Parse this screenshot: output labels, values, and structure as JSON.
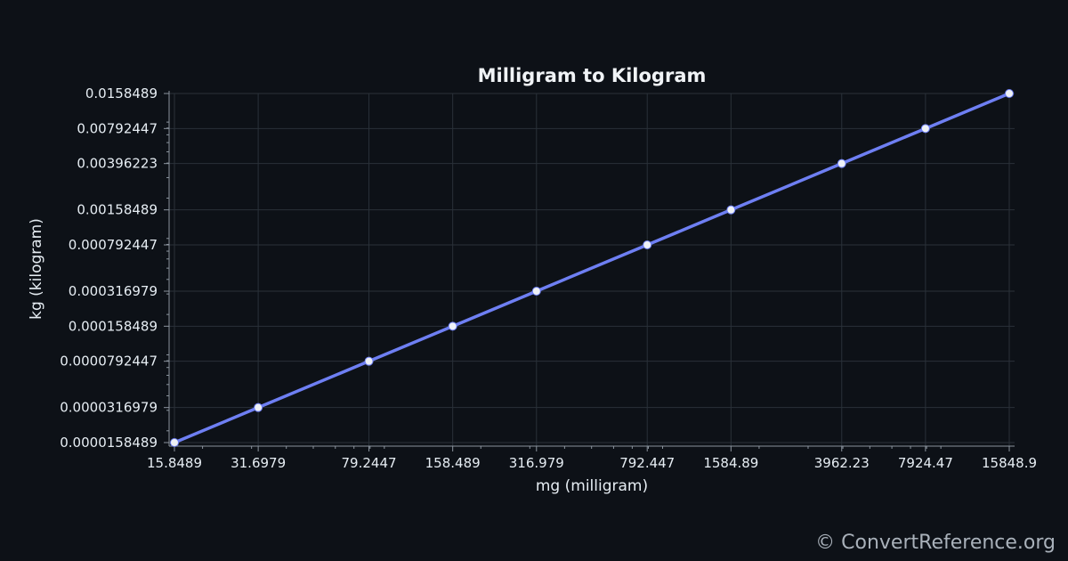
{
  "chart_data": {
    "type": "line",
    "title": "Milligram to Kilogram",
    "xlabel": "mg (milligram)",
    "ylabel": "kg (kilogram)",
    "x_scale": "log",
    "y_scale": "log",
    "xlim": [
      15.8489,
      15848.9
    ],
    "ylim": [
      1.58489e-05,
      0.0158489
    ],
    "grid": true,
    "x_ticks": [
      "15.8489",
      "31.6979",
      "79.2447",
      "158.489",
      "316.979",
      "792.447",
      "1584.89",
      "3962.23",
      "7924.47",
      "15848.9"
    ],
    "y_ticks": [
      "0.0000158489",
      "0.0000316979",
      "0.0000792447",
      "0.000158489",
      "0.000316979",
      "0.000792447",
      "0.00158489",
      "0.00396223",
      "0.00792447",
      "0.0158489"
    ],
    "series": [
      {
        "x": [
          15.8489,
          31.6979,
          79.2447,
          158.489,
          316.979,
          792.447,
          1584.89,
          3962.23,
          7924.47,
          15848.9
        ],
        "y": [
          1.58489e-05,
          3.16979e-05,
          7.92447e-05,
          0.000158489,
          0.000316979,
          0.000792447,
          0.00158489,
          0.00396223,
          0.00792447,
          0.0158489
        ]
      }
    ],
    "colors": {
      "background": "#0d1117",
      "line": "#6e7ff3",
      "marker": "#eef1f6",
      "grid": "#2a3139",
      "text": "#e6edf3"
    }
  },
  "watermark": "© ConvertReference.org"
}
